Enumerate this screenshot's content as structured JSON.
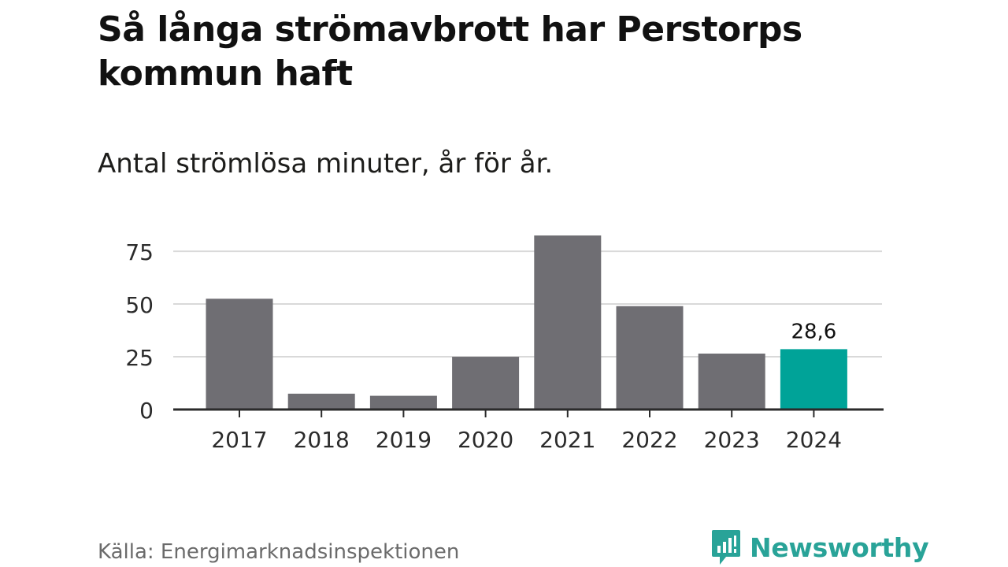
{
  "title": "Så långa strömavbrott har Perstorps kommun haft",
  "subtitle": "Antal strömlösa minuter, år för år.",
  "source": "Källa: Energimarknadsinspektionen",
  "brand": {
    "name": "Newsworthy",
    "icon": "newsworthy-logo-icon"
  },
  "colors": {
    "bar": "#6f6e73",
    "highlight": "#00a398",
    "grid": "#d9d9d9",
    "axis": "#2b2b2b",
    "text": "#2b2b2b"
  },
  "chart_data": {
    "type": "bar",
    "title": "Så långa strömavbrott har Perstorps kommun haft",
    "subtitle": "Antal strömlösa minuter, år för år.",
    "categories": [
      "2017",
      "2018",
      "2019",
      "2020",
      "2021",
      "2022",
      "2023",
      "2024"
    ],
    "values": [
      52.5,
      7.5,
      6.5,
      25,
      82.5,
      49,
      26.5,
      28.6
    ],
    "highlight_index": 7,
    "data_labels": [
      {
        "index": 7,
        "text": "28,6"
      }
    ],
    "yticks": [
      0,
      25,
      50,
      75
    ],
    "ylim": [
      0,
      82.5
    ],
    "xlabel": "",
    "ylabel": "",
    "grid": true
  }
}
